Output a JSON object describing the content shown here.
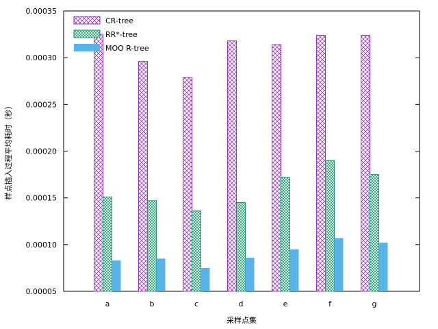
{
  "chart_data": {
    "type": "bar",
    "xlabel": "采样点集",
    "ylabel": "样点插入过程平均耗时（秒）",
    "categories": [
      "a",
      "b",
      "c",
      "d",
      "e",
      "f",
      "g"
    ],
    "ylim": [
      5e-05,
      0.00035
    ],
    "yticks": [
      "0.00005",
      "0.00010",
      "0.00015",
      "0.00020",
      "0.00025",
      "0.00030",
      "0.00035"
    ],
    "grid": false,
    "legend_position": "top-left",
    "series": [
      {
        "name": "CR-tree",
        "pattern": "crosshatch",
        "color": "#9b30d0",
        "values": [
          0.000325,
          0.000296,
          0.000279,
          0.000318,
          0.000314,
          0.000324,
          0.000324
        ]
      },
      {
        "name": "RR*-tree",
        "pattern": "crosshatch",
        "color": "#1a9a68",
        "values": [
          0.000151,
          0.000147,
          0.000136,
          0.000145,
          0.000172,
          0.00019,
          0.000175
        ]
      },
      {
        "name": "MOO R-tree",
        "pattern": "solid",
        "color": "#58b4e8",
        "values": [
          8.3e-05,
          8.5e-05,
          7.5e-05,
          8.6e-05,
          9.5e-05,
          0.000107,
          0.000102
        ]
      }
    ]
  }
}
